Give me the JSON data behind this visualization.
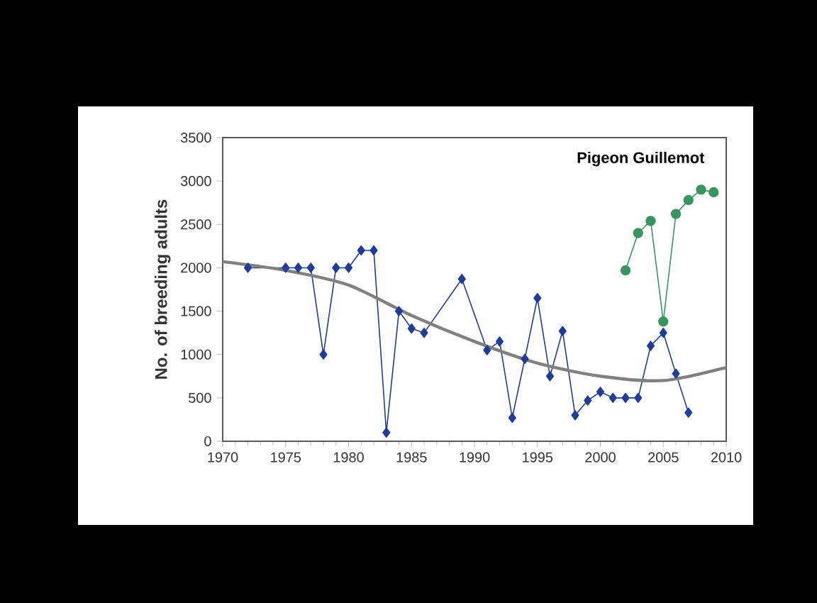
{
  "chart_data": {
    "type": "line",
    "title": "Pigeon Guillemot",
    "ylabel": "No. of breeding adults",
    "xlim": [
      1970,
      2010
    ],
    "xticks": [
      1970,
      1975,
      1980,
      1985,
      1990,
      1995,
      2000,
      2005,
      2010
    ],
    "ylim": [
      0,
      3500
    ],
    "yticks": [
      0,
      500,
      1000,
      1500,
      2000,
      2500,
      3000,
      3500
    ],
    "series": [
      {
        "color": "#1f3c96",
        "marker": "diamond",
        "x": [
          1972,
          1975,
          1976,
          1977,
          1978,
          1979,
          1980,
          1981,
          1982,
          1983,
          1984,
          1985,
          1986,
          1989,
          1991,
          1992,
          1993,
          1994,
          1995,
          1996,
          1997,
          1998,
          1999,
          2000,
          2001,
          2002,
          2003,
          2004,
          2005,
          2006,
          2007
        ],
        "values": [
          2000,
          2000,
          2000,
          2000,
          1000,
          2000,
          2000,
          2200,
          2200,
          100,
          1500,
          1300,
          1250,
          1870,
          1050,
          1150,
          270,
          950,
          1650,
          750,
          1270,
          300,
          470,
          570,
          500,
          500,
          500,
          1100,
          1250,
          780,
          330
        ]
      },
      {
        "color": "#3a9460",
        "marker": "circle",
        "x": [
          2002,
          2003,
          2004,
          2005,
          2006,
          2007,
          2008,
          2009
        ],
        "values": [
          1970,
          2400,
          2540,
          1380,
          2620,
          2780,
          2900,
          2870
        ]
      },
      {
        "color": "#808080",
        "marker": "none",
        "x": [
          1970,
          1975,
          1980,
          1985,
          1990,
          1995,
          2000,
          2005,
          2010
        ],
        "values": [
          2070,
          1970,
          1800,
          1450,
          1150,
          900,
          750,
          700,
          850
        ]
      }
    ]
  }
}
